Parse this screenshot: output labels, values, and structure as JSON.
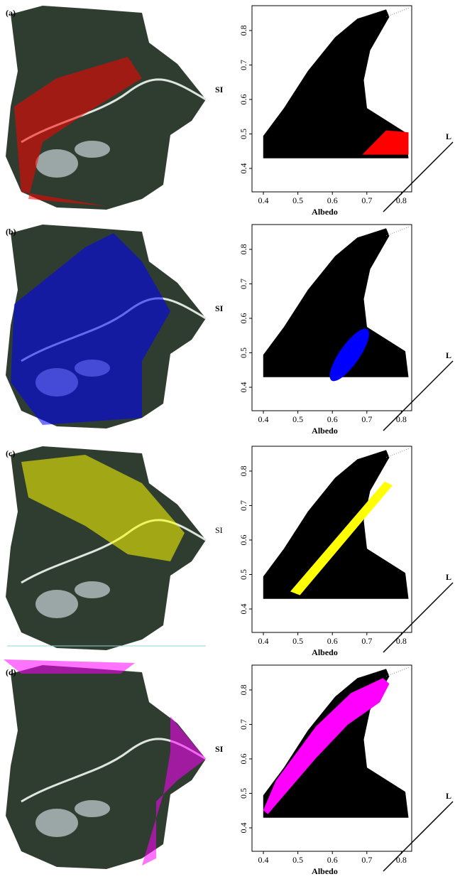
{
  "panels": [
    {
      "label": "(a)",
      "y_label": "SI",
      "x_label": "Albedo",
      "line_label": "L",
      "highlight_color": "#ff0000",
      "xlim": [
        0.367,
        0.83
      ],
      "ylim": [
        0.332,
        0.872
      ],
      "xticks": [
        0.4,
        0.5,
        0.6,
        0.7,
        0.8
      ],
      "yticks": [
        0.4,
        0.5,
        0.6,
        0.7,
        0.8
      ]
    },
    {
      "label": "(b)",
      "y_label": "SI",
      "x_label": "Albedo",
      "line_label": "L",
      "highlight_color": "#0000ff",
      "xlim": [
        0.367,
        0.83
      ],
      "ylim": [
        0.332,
        0.872
      ],
      "xticks": [
        0.4,
        0.5,
        0.6,
        0.7,
        0.8
      ],
      "yticks": [
        0.4,
        0.5,
        0.6,
        0.7,
        0.8
      ]
    },
    {
      "label": "(c)",
      "y_label": "SI",
      "x_label": "Albedo",
      "line_label": "L",
      "highlight_color": "#ffff00",
      "xlim": [
        0.367,
        0.83
      ],
      "ylim": [
        0.332,
        0.872
      ],
      "xticks": [
        0.4,
        0.5,
        0.6,
        0.7,
        0.8
      ],
      "yticks": [
        0.4,
        0.5,
        0.6,
        0.7,
        0.8
      ]
    },
    {
      "label": "(d)",
      "y_label": "SI",
      "x_label": "Albedo",
      "line_label": "L",
      "highlight_color": "#ff00ff",
      "xlim": [
        0.367,
        0.83
      ],
      "ylim": [
        0.332,
        0.872
      ],
      "xticks": [
        0.4,
        0.5,
        0.6,
        0.7,
        0.8
      ],
      "yticks": [
        0.4,
        0.5,
        0.6,
        0.7,
        0.8
      ]
    }
  ]
}
